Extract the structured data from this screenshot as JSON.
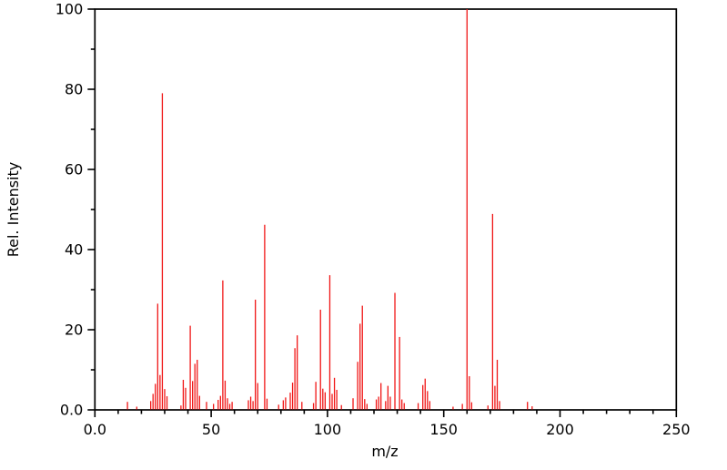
{
  "chart_data": {
    "type": "bar",
    "subtype": "mass-spectrum-stems",
    "title": "",
    "xlabel": "m/z",
    "ylabel": "Rel. Intensity",
    "xlim": [
      0,
      250
    ],
    "ylim": [
      0,
      100
    ],
    "grid": false,
    "legend": false,
    "x_major_ticks": [
      0,
      50,
      100,
      150,
      200,
      250
    ],
    "x_major_tick_labels": [
      "0.0",
      "50",
      "100",
      "150",
      "200",
      "250"
    ],
    "x_minor_tick_step": 10,
    "y_major_ticks": [
      0,
      20,
      40,
      60,
      80,
      100
    ],
    "y_major_tick_labels": [
      "0.0",
      "20",
      "40",
      "60",
      "80",
      "100"
    ],
    "y_minor_tick_step": 10,
    "bar_color": "#f01515",
    "frame_color": "#000000",
    "x": [
      14,
      18,
      24,
      25,
      26,
      27,
      28,
      29,
      30,
      31,
      37,
      38,
      39,
      41,
      42,
      43,
      44,
      45,
      48,
      51,
      53,
      54,
      55,
      56,
      57,
      58,
      59,
      66,
      67,
      68,
      69,
      70,
      73,
      74,
      79,
      81,
      82,
      84,
      85,
      86,
      87,
      89,
      94,
      95,
      97,
      98,
      99,
      101,
      102,
      103,
      104,
      106,
      111,
      113,
      114,
      115,
      116,
      117,
      121,
      122,
      123,
      125,
      126,
      127,
      129,
      131,
      132,
      133,
      139,
      141,
      142,
      143,
      144,
      154,
      158,
      160,
      161,
      162,
      169,
      171,
      172,
      173,
      174,
      186,
      188
    ],
    "y": [
      2.0,
      0.8,
      2.2,
      4.0,
      6.5,
      26.5,
      8.7,
      79.0,
      5.2,
      3.4,
      1.1,
      7.5,
      5.5,
      21.0,
      7.2,
      11.5,
      12.5,
      3.5,
      2.0,
      1.5,
      2.5,
      3.5,
      32.3,
      7.3,
      2.9,
      1.5,
      2.0,
      2.4,
      3.3,
      2.2,
      27.5,
      6.7,
      46.2,
      2.8,
      1.3,
      2.4,
      3.1,
      4.3,
      6.8,
      15.4,
      18.6,
      2.0,
      1.7,
      7.0,
      25.0,
      5.3,
      4.4,
      33.6,
      4.0,
      8.0,
      5.0,
      1.2,
      2.9,
      12.0,
      21.5,
      26.0,
      2.7,
      1.5,
      2.6,
      3.3,
      6.7,
      2.2,
      6.0,
      3.3,
      29.2,
      18.2,
      2.6,
      1.7,
      1.7,
      6.2,
      7.8,
      4.7,
      2.2,
      0.8,
      1.5,
      100.0,
      8.4,
      1.9,
      1.1,
      48.9,
      6.0,
      12.5,
      2.2,
      2.0,
      0.9
    ]
  }
}
